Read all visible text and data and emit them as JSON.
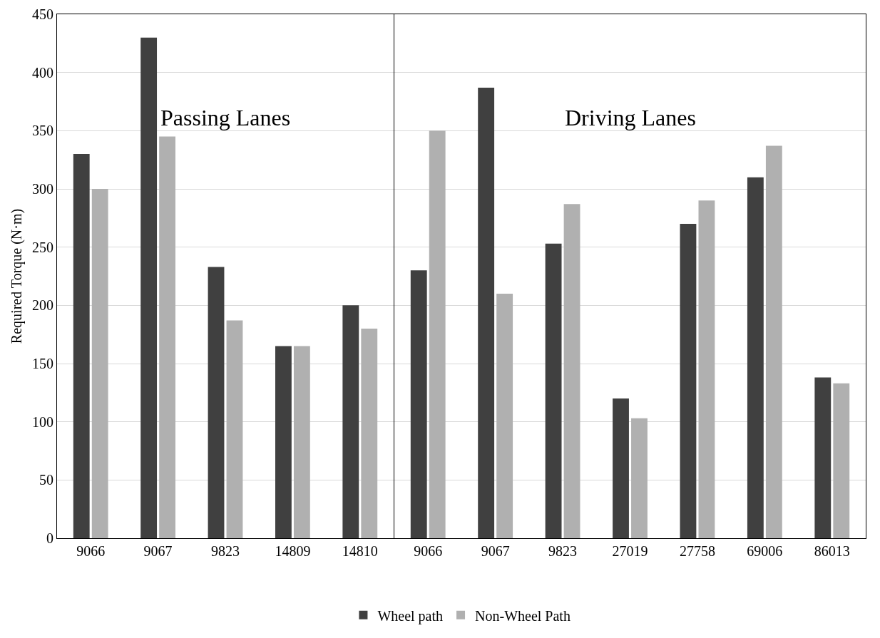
{
  "chart_data": [
    {
      "type": "bar",
      "ylabel": "Required Torque (N·m)",
      "categories": [
        "9066",
        "9067",
        "9823",
        "14809",
        "14810"
      ],
      "series": [
        {
          "color": "#404040",
          "values": [
            330,
            430,
            233,
            165,
            200
          ]
        },
        {
          "color": "#b0b0b0",
          "values": [
            300,
            345,
            187,
            165,
            180
          ]
        }
      ],
      "ylim": [
        0,
        450
      ],
      "yticks": [
        0,
        50,
        100,
        150,
        200,
        250,
        300,
        350,
        400,
        450
      ],
      "grid": "y",
      "annotations": [
        "Passing Lanes"
      ]
    },
    {
      "type": "bar",
      "categories": [
        "9066",
        "9067",
        "9823",
        "27019",
        "27758",
        "69006",
        "86013"
      ],
      "series": [
        {
          "name": "Wheel path",
          "color": "#404040",
          "values": [
            230,
            387,
            253,
            120,
            270,
            310,
            138
          ]
        },
        {
          "name": "Non-Wheel Path",
          "color": "#b0b0b0",
          "values": [
            350,
            210,
            287,
            103,
            290,
            337,
            133
          ]
        }
      ],
      "ylim": [
        0,
        450
      ],
      "yticks": [
        0,
        50,
        100,
        150,
        200,
        250,
        300,
        350,
        400,
        450
      ],
      "grid": "y",
      "legend": "bottom",
      "tick_labels": "x",
      "annotations": [
        "Driving Lanes"
      ]
    }
  ]
}
